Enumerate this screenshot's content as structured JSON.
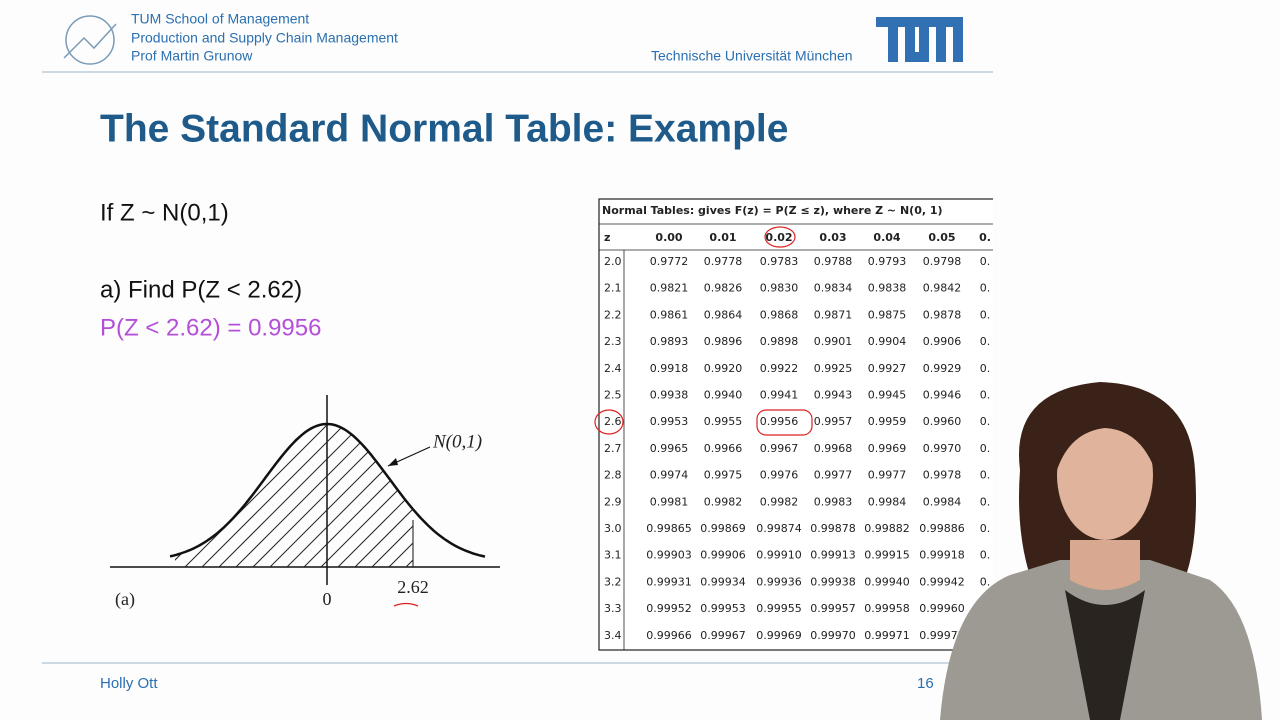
{
  "header": {
    "org_lines": [
      "TUM School of Management",
      "Production and Supply Chain Management",
      "Prof Martin Grunow"
    ],
    "university": "Technische Universität München"
  },
  "slide": {
    "title": "The Standard Normal Table: Example",
    "premise": "If Z ~ N(0,1)",
    "question": "a) Find P(Z < 2.62)",
    "answer": "P(Z < 2.62) = 0.9956"
  },
  "figure": {
    "curve_label": "N(0,1)",
    "panel": "(a)",
    "mean_label": "0",
    "cut_label": "2.62"
  },
  "table": {
    "caption": "Normal Tables: gives F(z) = P(Z ≤ z), where Z ~ N(0, 1)",
    "columns": [
      "z",
      "0.00",
      "0.01",
      "0.02",
      "0.03",
      "0.04",
      "0.05",
      "0."
    ],
    "rows": [
      [
        "2.0",
        "0.9772",
        "0.9778",
        "0.9783",
        "0.9788",
        "0.9793",
        "0.9798",
        "0."
      ],
      [
        "2.1",
        "0.9821",
        "0.9826",
        "0.9830",
        "0.9834",
        "0.9838",
        "0.9842",
        "0."
      ],
      [
        "2.2",
        "0.9861",
        "0.9864",
        "0.9868",
        "0.9871",
        "0.9875",
        "0.9878",
        "0."
      ],
      [
        "2.3",
        "0.9893",
        "0.9896",
        "0.9898",
        "0.9901",
        "0.9904",
        "0.9906",
        "0."
      ],
      [
        "2.4",
        "0.9918",
        "0.9920",
        "0.9922",
        "0.9925",
        "0.9927",
        "0.9929",
        "0."
      ],
      [
        "2.5",
        "0.9938",
        "0.9940",
        "0.9941",
        "0.9943",
        "0.9945",
        "0.9946",
        "0."
      ],
      [
        "2.6",
        "0.9953",
        "0.9955",
        "0.9956",
        "0.9957",
        "0.9959",
        "0.9960",
        "0."
      ],
      [
        "2.7",
        "0.9965",
        "0.9966",
        "0.9967",
        "0.9968",
        "0.9969",
        "0.9970",
        "0."
      ],
      [
        "2.8",
        "0.9974",
        "0.9975",
        "0.9976",
        "0.9977",
        "0.9977",
        "0.9978",
        "0."
      ],
      [
        "2.9",
        "0.9981",
        "0.9982",
        "0.9982",
        "0.9983",
        "0.9984",
        "0.9984",
        "0."
      ],
      [
        "3.0",
        "0.99865",
        "0.99869",
        "0.99874",
        "0.99878",
        "0.99882",
        "0.99886",
        "0."
      ],
      [
        "3.1",
        "0.99903",
        "0.99906",
        "0.99910",
        "0.99913",
        "0.99915",
        "0.99918",
        "0."
      ],
      [
        "3.2",
        "0.99931",
        "0.99934",
        "0.99936",
        "0.99938",
        "0.99940",
        "0.99942",
        "0."
      ],
      [
        "3.3",
        "0.99952",
        "0.99953",
        "0.99955",
        "0.99957",
        "0.99958",
        "0.99960",
        "0."
      ],
      [
        "3.4",
        "0.99966",
        "0.99967",
        "0.99969",
        "0.99970",
        "0.99971",
        "0.99972",
        "0."
      ]
    ]
  },
  "footer": {
    "presenter": "Holly Ott",
    "page": "16"
  }
}
